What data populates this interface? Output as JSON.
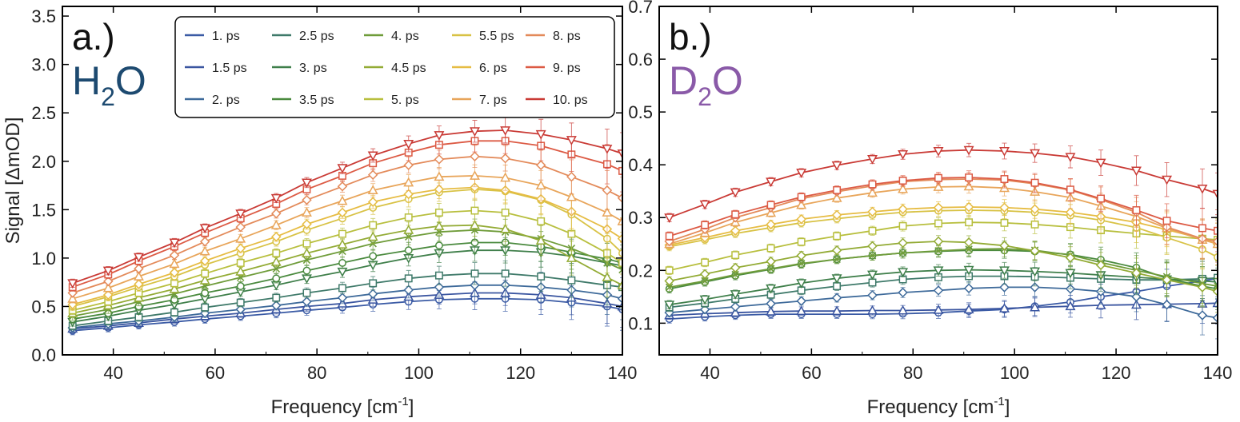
{
  "series_style": [
    {
      "name": "1. ps",
      "color": "#3b5ba5"
    },
    {
      "name": "1.5 ps",
      "color": "#3a55a0"
    },
    {
      "name": "2. ps",
      "color": "#3e6a9a"
    },
    {
      "name": "2.5 ps",
      "color": "#3f7a6a"
    },
    {
      "name": "3. ps",
      "color": "#3f7f4a"
    },
    {
      "name": "3.5 ps",
      "color": "#4a8a3e"
    },
    {
      "name": "4. ps",
      "color": "#6f9c3a"
    },
    {
      "name": "4.5 ps",
      "color": "#93ab35"
    },
    {
      "name": "5. ps",
      "color": "#b8bf3e"
    },
    {
      "name": "5.5 ps",
      "color": "#d8c245"
    },
    {
      "name": "6. ps",
      "color": "#e6bc43"
    },
    {
      "name": "7. ps",
      "color": "#e8a55a"
    },
    {
      "name": "8. ps",
      "color": "#e38a5a"
    },
    {
      "name": "9. ps",
      "color": "#dc5a44"
    },
    {
      "name": "10. ps",
      "color": "#c93a35"
    }
  ],
  "chart_data": [
    {
      "type": "line",
      "panel": "a.)",
      "solvent": {
        "main": "H",
        "sub": "2",
        "tail": "O",
        "color": "#1d4a70"
      },
      "xlabel": "Frequency [cm",
      "xlabel_sup": "-1",
      "xlabel_close": "]",
      "ylabel": "Signal [ΔmOD]",
      "xlim": [
        30,
        140
      ],
      "ylim": [
        0,
        3.6
      ],
      "xticks": [
        "40",
        "60",
        "80",
        "100",
        "120",
        "140"
      ],
      "yticks": [
        "0.0",
        "0.5",
        "1.0",
        "1.5",
        "2.0",
        "2.5",
        "3.0",
        "3.5"
      ],
      "x": [
        32,
        39,
        45,
        52,
        58,
        65,
        72,
        78,
        85,
        91,
        98,
        104,
        111,
        117,
        124,
        130,
        137,
        140
      ],
      "series": [
        {
          "name": "1. ps",
          "marker": "circle",
          "values": [
            0.25,
            0.28,
            0.31,
            0.34,
            0.37,
            0.4,
            0.43,
            0.46,
            0.49,
            0.52,
            0.55,
            0.57,
            0.58,
            0.58,
            0.57,
            0.54,
            0.5,
            0.47
          ]
        },
        {
          "name": "1.5 ps",
          "marker": "triangle",
          "values": [
            0.27,
            0.3,
            0.33,
            0.37,
            0.4,
            0.43,
            0.47,
            0.5,
            0.53,
            0.57,
            0.6,
            0.62,
            0.64,
            0.64,
            0.62,
            0.59,
            0.53,
            0.5
          ]
        },
        {
          "name": "2. ps",
          "marker": "diamond",
          "values": [
            0.28,
            0.32,
            0.35,
            0.39,
            0.43,
            0.47,
            0.51,
            0.55,
            0.59,
            0.63,
            0.67,
            0.7,
            0.72,
            0.72,
            0.7,
            0.67,
            0.62,
            0.58
          ]
        },
        {
          "name": "2.5 ps",
          "marker": "square",
          "values": [
            0.3,
            0.35,
            0.39,
            0.44,
            0.49,
            0.54,
            0.59,
            0.64,
            0.69,
            0.74,
            0.79,
            0.82,
            0.84,
            0.84,
            0.81,
            0.77,
            0.72,
            0.7
          ]
        },
        {
          "name": "3. ps",
          "marker": "tri-down",
          "values": [
            0.34,
            0.4,
            0.46,
            0.52,
            0.58,
            0.65,
            0.72,
            0.79,
            0.86,
            0.93,
            1.0,
            1.05,
            1.08,
            1.08,
            1.06,
            1.02,
            0.95,
            0.92
          ]
        },
        {
          "name": "3.5 ps",
          "marker": "circle",
          "values": [
            0.37,
            0.43,
            0.5,
            0.57,
            0.64,
            0.71,
            0.79,
            0.87,
            0.95,
            1.02,
            1.08,
            1.13,
            1.16,
            1.16,
            1.12,
            1.06,
            0.99,
            0.95
          ]
        },
        {
          "name": "4. ps",
          "marker": "cross",
          "values": [
            0.4,
            0.47,
            0.55,
            0.63,
            0.71,
            0.8,
            0.89,
            0.98,
            1.07,
            1.15,
            1.22,
            1.27,
            1.29,
            1.27,
            1.2,
            1.1,
            0.95,
            0.88
          ]
        },
        {
          "name": "4.5 ps",
          "marker": "triangle",
          "values": [
            0.43,
            0.51,
            0.59,
            0.68,
            0.77,
            0.86,
            0.96,
            1.05,
            1.14,
            1.22,
            1.29,
            1.33,
            1.34,
            1.3,
            1.18,
            1.0,
            0.8,
            0.72
          ]
        },
        {
          "name": "5. ps",
          "marker": "square",
          "values": [
            0.46,
            0.55,
            0.64,
            0.74,
            0.84,
            0.95,
            1.05,
            1.15,
            1.25,
            1.34,
            1.42,
            1.47,
            1.49,
            1.47,
            1.38,
            1.25,
            1.05,
            0.95
          ]
        },
        {
          "name": "5.5 ps",
          "marker": "circle",
          "values": [
            0.5,
            0.6,
            0.7,
            0.81,
            0.93,
            1.05,
            1.17,
            1.29,
            1.41,
            1.52,
            1.61,
            1.68,
            1.71,
            1.69,
            1.6,
            1.45,
            1.2,
            1.05
          ]
        },
        {
          "name": "6. ps",
          "marker": "diamond",
          "values": [
            0.52,
            0.62,
            0.73,
            0.85,
            0.97,
            1.1,
            1.22,
            1.35,
            1.47,
            1.58,
            1.66,
            1.71,
            1.73,
            1.7,
            1.61,
            1.48,
            1.3,
            1.2
          ]
        },
        {
          "name": "7. ps",
          "marker": "triangle",
          "values": [
            0.58,
            0.69,
            0.81,
            0.94,
            1.07,
            1.2,
            1.34,
            1.47,
            1.59,
            1.7,
            1.78,
            1.84,
            1.85,
            1.83,
            1.75,
            1.63,
            1.47,
            1.38
          ]
        },
        {
          "name": "8. ps",
          "marker": "diamond",
          "values": [
            0.64,
            0.76,
            0.89,
            1.03,
            1.17,
            1.32,
            1.46,
            1.6,
            1.74,
            1.86,
            1.96,
            2.02,
            2.05,
            2.03,
            1.96,
            1.84,
            1.7,
            1.62
          ]
        },
        {
          "name": "9. ps",
          "marker": "square",
          "values": [
            0.7,
            0.83,
            0.97,
            1.12,
            1.26,
            1.41,
            1.56,
            1.71,
            1.85,
            1.98,
            2.09,
            2.17,
            2.21,
            2.21,
            2.16,
            2.07,
            1.97,
            1.9
          ]
        },
        {
          "name": "10. ps",
          "marker": "tri-down",
          "values": [
            0.74,
            0.87,
            1.01,
            1.16,
            1.31,
            1.46,
            1.62,
            1.78,
            1.93,
            2.06,
            2.18,
            2.27,
            2.31,
            2.32,
            2.28,
            2.22,
            2.13,
            2.08
          ]
        }
      ]
    },
    {
      "type": "line",
      "panel": "b.)",
      "solvent": {
        "main": "D",
        "sub": "2",
        "tail": "O",
        "color": "#8a5aa8"
      },
      "xlabel": "Frequency [cm",
      "xlabel_sup": "-1",
      "xlabel_close": "]",
      "xlim": [
        30,
        140
      ],
      "ylim": [
        0.04,
        0.7
      ],
      "xticks": [
        "40",
        "60",
        "80",
        "100",
        "120",
        "140"
      ],
      "yticks": [
        "0.1",
        "0.2",
        "0.3",
        "0.4",
        "0.5",
        "0.6",
        "0.7"
      ],
      "x": [
        32,
        39,
        45,
        52,
        58,
        65,
        72,
        78,
        85,
        91,
        98,
        104,
        111,
        117,
        124,
        130,
        137,
        140
      ],
      "series": [
        {
          "name": "1. ps",
          "marker": "circle",
          "values": [
            0.108,
            0.112,
            0.115,
            0.117,
            0.117,
            0.117,
            0.117,
            0.118,
            0.12,
            0.123,
            0.126,
            0.132,
            0.14,
            0.15,
            0.16,
            0.17,
            0.18,
            0.185
          ]
        },
        {
          "name": "1.5 ps",
          "marker": "triangle",
          "values": [
            0.115,
            0.118,
            0.12,
            0.122,
            0.123,
            0.123,
            0.124,
            0.124,
            0.125,
            0.126,
            0.128,
            0.13,
            0.132,
            0.134,
            0.135,
            0.136,
            0.137,
            0.138
          ]
        },
        {
          "name": "2. ps",
          "marker": "diamond",
          "values": [
            0.12,
            0.126,
            0.131,
            0.137,
            0.142,
            0.148,
            0.153,
            0.158,
            0.162,
            0.166,
            0.168,
            0.168,
            0.165,
            0.16,
            0.15,
            0.135,
            0.115,
            0.11
          ]
        },
        {
          "name": "2.5 ps",
          "marker": "square",
          "values": [
            0.13,
            0.138,
            0.146,
            0.154,
            0.162,
            0.17,
            0.177,
            0.183,
            0.187,
            0.189,
            0.189,
            0.188,
            0.186,
            0.184,
            0.182,
            0.182,
            0.184,
            0.186
          ]
        },
        {
          "name": "3. ps",
          "marker": "tri-down",
          "values": [
            0.135,
            0.145,
            0.155,
            0.166,
            0.176,
            0.185,
            0.192,
            0.197,
            0.2,
            0.201,
            0.2,
            0.198,
            0.195,
            0.191,
            0.187,
            0.183,
            0.18,
            0.178
          ]
        },
        {
          "name": "3.5 ps",
          "marker": "circle",
          "values": [
            0.165,
            0.178,
            0.19,
            0.202,
            0.212,
            0.221,
            0.228,
            0.233,
            0.236,
            0.238,
            0.238,
            0.236,
            0.23,
            0.22,
            0.205,
            0.185,
            0.17,
            0.165
          ]
        },
        {
          "name": "4. ps",
          "marker": "cross",
          "values": [
            0.168,
            0.18,
            0.192,
            0.203,
            0.213,
            0.221,
            0.228,
            0.233,
            0.237,
            0.24,
            0.241,
            0.238,
            0.229,
            0.215,
            0.2,
            0.188,
            0.175,
            0.17
          ]
        },
        {
          "name": "4.5 ps",
          "marker": "diamond",
          "values": [
            0.18,
            0.193,
            0.205,
            0.217,
            0.228,
            0.238,
            0.246,
            0.252,
            0.255,
            0.253,
            0.247,
            0.237,
            0.224,
            0.21,
            0.195,
            0.182,
            0.168,
            0.16
          ]
        },
        {
          "name": "5. ps",
          "marker": "square",
          "values": [
            0.2,
            0.215,
            0.229,
            0.242,
            0.254,
            0.265,
            0.275,
            0.284,
            0.289,
            0.291,
            0.29,
            0.287,
            0.282,
            0.276,
            0.27,
            0.265,
            0.26,
            0.258
          ]
        },
        {
          "name": "5.5 ps",
          "marker": "circle",
          "values": [
            0.245,
            0.258,
            0.27,
            0.281,
            0.29,
            0.298,
            0.305,
            0.31,
            0.313,
            0.314,
            0.313,
            0.31,
            0.304,
            0.295,
            0.281,
            0.262,
            0.24,
            0.225
          ]
        },
        {
          "name": "6. ps",
          "marker": "diamond",
          "values": [
            0.248,
            0.262,
            0.275,
            0.287,
            0.297,
            0.305,
            0.311,
            0.316,
            0.319,
            0.32,
            0.319,
            0.316,
            0.31,
            0.302,
            0.291,
            0.277,
            0.26,
            0.25
          ]
        },
        {
          "name": "7. ps",
          "marker": "triangle",
          "values": [
            0.25,
            0.271,
            0.291,
            0.309,
            0.324,
            0.337,
            0.347,
            0.354,
            0.358,
            0.359,
            0.356,
            0.349,
            0.338,
            0.322,
            0.302,
            0.28,
            0.258,
            0.25
          ]
        },
        {
          "name": "8. ps",
          "marker": "diamond",
          "values": [
            0.255,
            0.278,
            0.3,
            0.319,
            0.336,
            0.349,
            0.36,
            0.368,
            0.372,
            0.373,
            0.371,
            0.364,
            0.352,
            0.334,
            0.31,
            0.282,
            0.26,
            0.255
          ]
        },
        {
          "name": "9. ps",
          "marker": "square",
          "values": [
            0.265,
            0.286,
            0.306,
            0.324,
            0.339,
            0.352,
            0.363,
            0.37,
            0.375,
            0.376,
            0.373,
            0.366,
            0.353,
            0.336,
            0.314,
            0.294,
            0.28,
            0.275
          ]
        },
        {
          "name": "10. ps",
          "marker": "tri-down",
          "values": [
            0.3,
            0.325,
            0.348,
            0.368,
            0.385,
            0.399,
            0.411,
            0.42,
            0.426,
            0.428,
            0.426,
            0.422,
            0.415,
            0.404,
            0.389,
            0.372,
            0.355,
            0.345
          ]
        }
      ]
    }
  ]
}
